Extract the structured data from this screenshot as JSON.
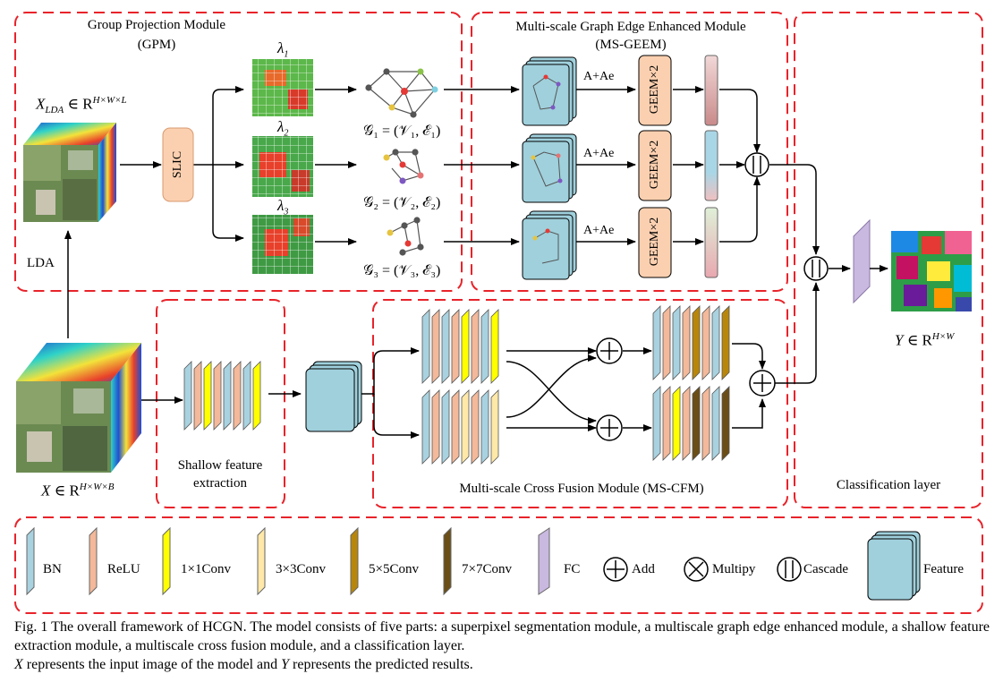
{
  "modules": {
    "gpm_title": "Group Projection Module",
    "gpm_abbr": "(GPM)",
    "msgeem_title": "Multi-scale Graph Edge Enhanced Module",
    "msgeem_abbr": "(MS-GEEM)",
    "sfe_line1": "Shallow feature",
    "sfe_line2": "extraction",
    "mscfm_title": "Multi-scale Cross Fusion Module (MS-CFM)",
    "cls_title": "Classification layer"
  },
  "labels": {
    "x_lda": "X_LDA ∈ R^{H×W×L}",
    "x_lda_main": "X",
    "x_lda_sub": "LDA",
    "x_lda_set": " ∈ R",
    "x_lda_sup": "H×W×L",
    "lda": "LDA",
    "slic": "SLIC",
    "lambda1": "λ",
    "lambda1_sub": "1",
    "lambda2": "λ",
    "lambda2_sub": "2",
    "lambda3": "λ",
    "lambda3_sub": "3",
    "g1": "𝒢₁ = (𝒱₁, ℰ₁)",
    "g2": "𝒢₂ = (𝒱₂, ℰ₂)",
    "g3": "𝒢₃ = (𝒱₃, ℰ₃)",
    "a_ae_1": "A+Ae",
    "a_ae_2": "A+Ae",
    "a_ae_3": "A+Ae",
    "geem_1": "GEEM×2",
    "geem_2": "GEEM×2",
    "geem_3": "GEEM×2",
    "x_input_main": "X",
    "x_input_set": " ∈ R",
    "x_input_sup": "H×W×B",
    "y_main": "Y",
    "y_set": " ∈ R",
    "y_sup": "H×W"
  },
  "legend": {
    "bn": "BN",
    "relu": "ReLU",
    "conv1": "1×1Conv",
    "conv3": "3×3Conv",
    "conv5": "5×5Conv",
    "conv7": "7×7Conv",
    "fc": "FC",
    "add": "Add",
    "multiply": "Multipy",
    "cascade": "Cascade",
    "feature": "Feature"
  },
  "caption": {
    "line1": "Fig. 1   The overall framework of HCGN. The model consists of five parts: a superpixel segmentation module, a multiscale graph edge enhanced module, a shallow feature extraction module, a multiscale cross fusion module, and a classification layer.",
    "line2_x": "X",
    "line2_mid": " represents the input image of the model and ",
    "line2_y": "Y",
    "line2_end": " represents the predicted results."
  },
  "colors": {
    "dash_red": "#e8232a",
    "bn": "#a9d2e0",
    "relu": "#f3b99a",
    "conv1": "#ffff00",
    "conv3": "#ffe8a8",
    "conv5": "#b8860b",
    "conv7": "#6b4e16",
    "fc": "#c9b8e0",
    "feature": "#9fd0dc",
    "slic": "#fbd0b0",
    "geem": "#fbd0b0"
  }
}
